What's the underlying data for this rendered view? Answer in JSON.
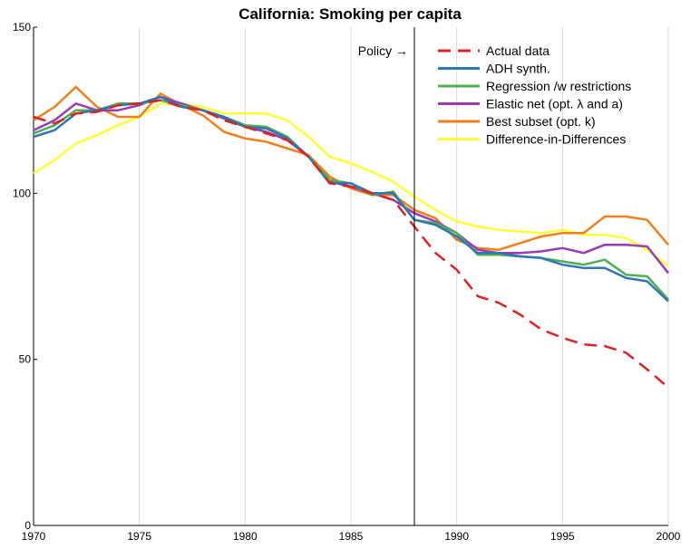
{
  "chart_data": {
    "type": "line",
    "title": "California: Smoking per capita",
    "xlabel": "",
    "ylabel": "",
    "xlim": [
      1970,
      2000
    ],
    "ylim": [
      0,
      150
    ],
    "xticks": [
      "1970",
      "1975",
      "1980",
      "1985",
      "1990",
      "1995",
      "2000"
    ],
    "yticks": [
      "0",
      "50",
      "100",
      "150"
    ],
    "grid": "vertical",
    "legend_position": "top-right",
    "policy_year": 1988,
    "annotation": "Policy →",
    "x": [
      1970,
      1971,
      1972,
      1973,
      1974,
      1975,
      1976,
      1977,
      1978,
      1979,
      1980,
      1981,
      1982,
      1983,
      1984,
      1985,
      1986,
      1987,
      1988,
      1989,
      1990,
      1991,
      1992,
      1993,
      1994,
      1995,
      1996,
      1997,
      1998,
      1999,
      2000
    ],
    "series": [
      {
        "name": "Actual data",
        "color": "#dd2222",
        "dash": true,
        "values": [
          123,
          121,
          124,
          124.5,
          126.5,
          127,
          128,
          126,
          125,
          122,
          120,
          118,
          116,
          111,
          103,
          102,
          100,
          98,
          90,
          82,
          77,
          69,
          67,
          63.5,
          59,
          56.5,
          54.5,
          54,
          52,
          47,
          41.5
        ]
      },
      {
        "name": "ADH synth.",
        "color": "#2e75b6",
        "dash": false,
        "values": [
          117,
          119,
          124,
          125,
          126.5,
          127,
          129,
          126,
          125,
          123,
          120,
          119.5,
          116.5,
          111,
          103,
          103,
          100,
          100,
          92,
          90.5,
          87,
          82,
          82,
          81,
          80.5,
          78.5,
          77.5,
          77.5,
          74.5,
          73.5,
          67.5
        ]
      },
      {
        "name": "Regression /w restrictions",
        "color": "#4caf50",
        "dash": false,
        "values": [
          118,
          120.5,
          125,
          125,
          127,
          127,
          128,
          126.5,
          125,
          123,
          120.5,
          120,
          117,
          111,
          104,
          103,
          99.5,
          100.5,
          92,
          91,
          88,
          81.5,
          81.5,
          81,
          80.5,
          79.5,
          78.5,
          80,
          75.5,
          75,
          68
        ]
      },
      {
        "name": "Elastic net (opt. λ and a)",
        "color": "#9b3ab4",
        "dash": false,
        "values": [
          119,
          122,
          127,
          125,
          125,
          126.5,
          129,
          127,
          125,
          122.5,
          120,
          118.5,
          116,
          111,
          103.5,
          102,
          100,
          98,
          94,
          91.5,
          88,
          83,
          82,
          82,
          82.5,
          83.5,
          82,
          84.5,
          84.5,
          84,
          76
        ]
      },
      {
        "name": "Best subset (opt. k)",
        "color": "#f07f1a",
        "dash": false,
        "values": [
          122,
          126,
          132,
          126,
          123,
          123,
          130,
          126.5,
          123.5,
          118.5,
          116.5,
          115.5,
          113.5,
          111.5,
          105,
          101.5,
          99.5,
          99.5,
          95,
          92.5,
          86,
          83.5,
          83,
          85,
          87,
          88,
          88,
          93,
          93,
          92,
          84.5
        ]
      },
      {
        "name": "Difference-in-Differences",
        "color": "#ffff33",
        "dash": false,
        "values": [
          106,
          110,
          115,
          117.5,
          120.5,
          123,
          127,
          127,
          126,
          124,
          124,
          124,
          122,
          117,
          111,
          109,
          106.5,
          103.5,
          99,
          95,
          91.5,
          90,
          89,
          88.5,
          88,
          89,
          87.5,
          87.5,
          86.5,
          83,
          78
        ]
      }
    ]
  }
}
